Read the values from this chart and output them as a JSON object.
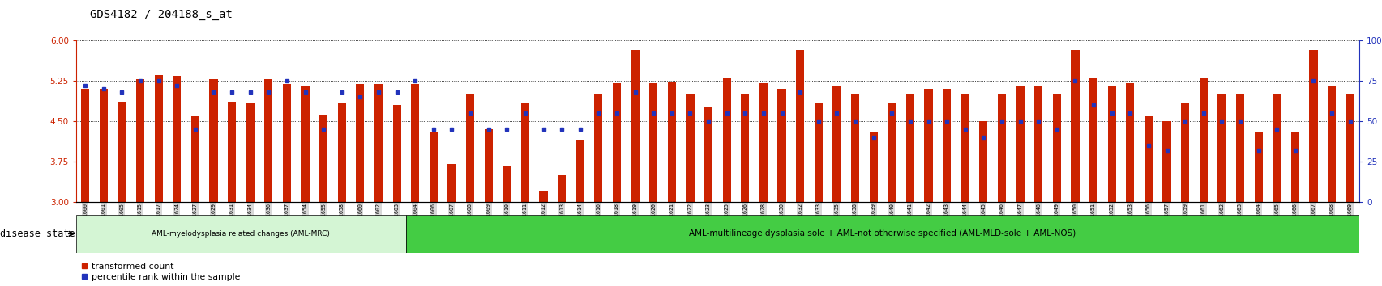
{
  "title": "GDS4182 / 204188_s_at",
  "samples": [
    "GSM531600",
    "GSM531601",
    "GSM531605",
    "GSM531615",
    "GSM531617",
    "GSM531624",
    "GSM531627",
    "GSM531629",
    "GSM531631",
    "GSM531634",
    "GSM531636",
    "GSM531637",
    "GSM531654",
    "GSM531655",
    "GSM531658",
    "GSM531660",
    "GSM531602",
    "GSM531603",
    "GSM531604",
    "GSM531606",
    "GSM531607",
    "GSM531608",
    "GSM531609",
    "GSM531610",
    "GSM531611",
    "GSM531612",
    "GSM531613",
    "GSM531614",
    "GSM531616",
    "GSM531618",
    "GSM531619",
    "GSM531620",
    "GSM531621",
    "GSM531622",
    "GSM531623",
    "GSM531625",
    "GSM531626",
    "GSM531628",
    "GSM531630",
    "GSM531632",
    "GSM531633",
    "GSM531635",
    "GSM531638",
    "GSM531639",
    "GSM531640",
    "GSM531641",
    "GSM531642",
    "GSM531643",
    "GSM531644",
    "GSM531645",
    "GSM531646",
    "GSM531647",
    "GSM531648",
    "GSM531649",
    "GSM531650",
    "GSM531651",
    "GSM531652",
    "GSM531653",
    "GSM531656",
    "GSM531657",
    "GSM531659",
    "GSM531661",
    "GSM531662",
    "GSM531663",
    "GSM531664",
    "GSM531665",
    "GSM531666",
    "GSM531667",
    "GSM531668",
    "GSM531669"
  ],
  "bar_values": [
    5.1,
    5.1,
    4.85,
    5.28,
    5.35,
    5.33,
    4.58,
    5.27,
    4.85,
    4.82,
    5.28,
    5.19,
    5.15,
    4.62,
    4.82,
    5.18,
    5.18,
    4.8,
    5.18,
    4.3,
    3.7,
    5.0,
    4.35,
    3.65,
    4.82,
    3.2,
    3.5,
    4.15,
    5.0,
    5.2,
    5.82,
    5.2,
    5.22,
    5.0,
    4.75,
    5.3,
    5.0,
    5.2,
    5.1,
    5.82,
    4.82,
    5.15,
    5.0,
    4.3,
    4.82,
    5.0,
    5.1,
    5.1,
    5.0,
    4.5,
    5.0,
    5.15,
    5.15,
    5.0,
    5.82,
    5.3,
    5.15,
    5.2,
    4.6,
    4.5,
    4.82,
    5.3,
    5.0,
    5.0,
    4.3,
    5.0,
    4.3,
    5.82,
    5.15,
    5.0
  ],
  "percentile_values_pct": [
    72,
    70,
    68,
    75,
    75,
    72,
    45,
    68,
    68,
    68,
    68,
    75,
    68,
    45,
    68,
    65,
    68,
    68,
    75,
    45,
    45,
    55,
    45,
    45,
    55,
    45,
    45,
    45,
    55,
    55,
    68,
    55,
    55,
    55,
    50,
    55,
    55,
    55,
    55,
    68,
    50,
    55,
    50,
    40,
    55,
    50,
    50,
    50,
    45,
    40,
    50,
    50,
    50,
    45,
    75,
    60,
    55,
    55,
    35,
    32,
    50,
    55,
    50,
    50,
    32,
    45,
    32,
    75,
    55,
    50
  ],
  "group1_count": 18,
  "group23_count": 52,
  "group1_label": "AML-myelodysplasia related changes (AML-MRC)",
  "group2_label": "AML-multilineage dysplasia sole + AML-not otherwise specified (AML-MLD-sole + AML-NOS)",
  "disease_state_label": "disease state",
  "ylim_left": [
    3.0,
    6.0
  ],
  "yticks_left": [
    3.0,
    3.75,
    4.5,
    5.25,
    6.0
  ],
  "ylim_right": [
    0,
    100
  ],
  "yticks_right": [
    0,
    25,
    50,
    75,
    100
  ],
  "bar_color": "#cc2200",
  "dot_color": "#2233bb",
  "group1_bg": "#d4f5d4",
  "group2_bg": "#44cc44",
  "tick_label_bg": "#d8d8d8",
  "legend_bar_label": "transformed count",
  "legend_dot_label": "percentile rank within the sample"
}
